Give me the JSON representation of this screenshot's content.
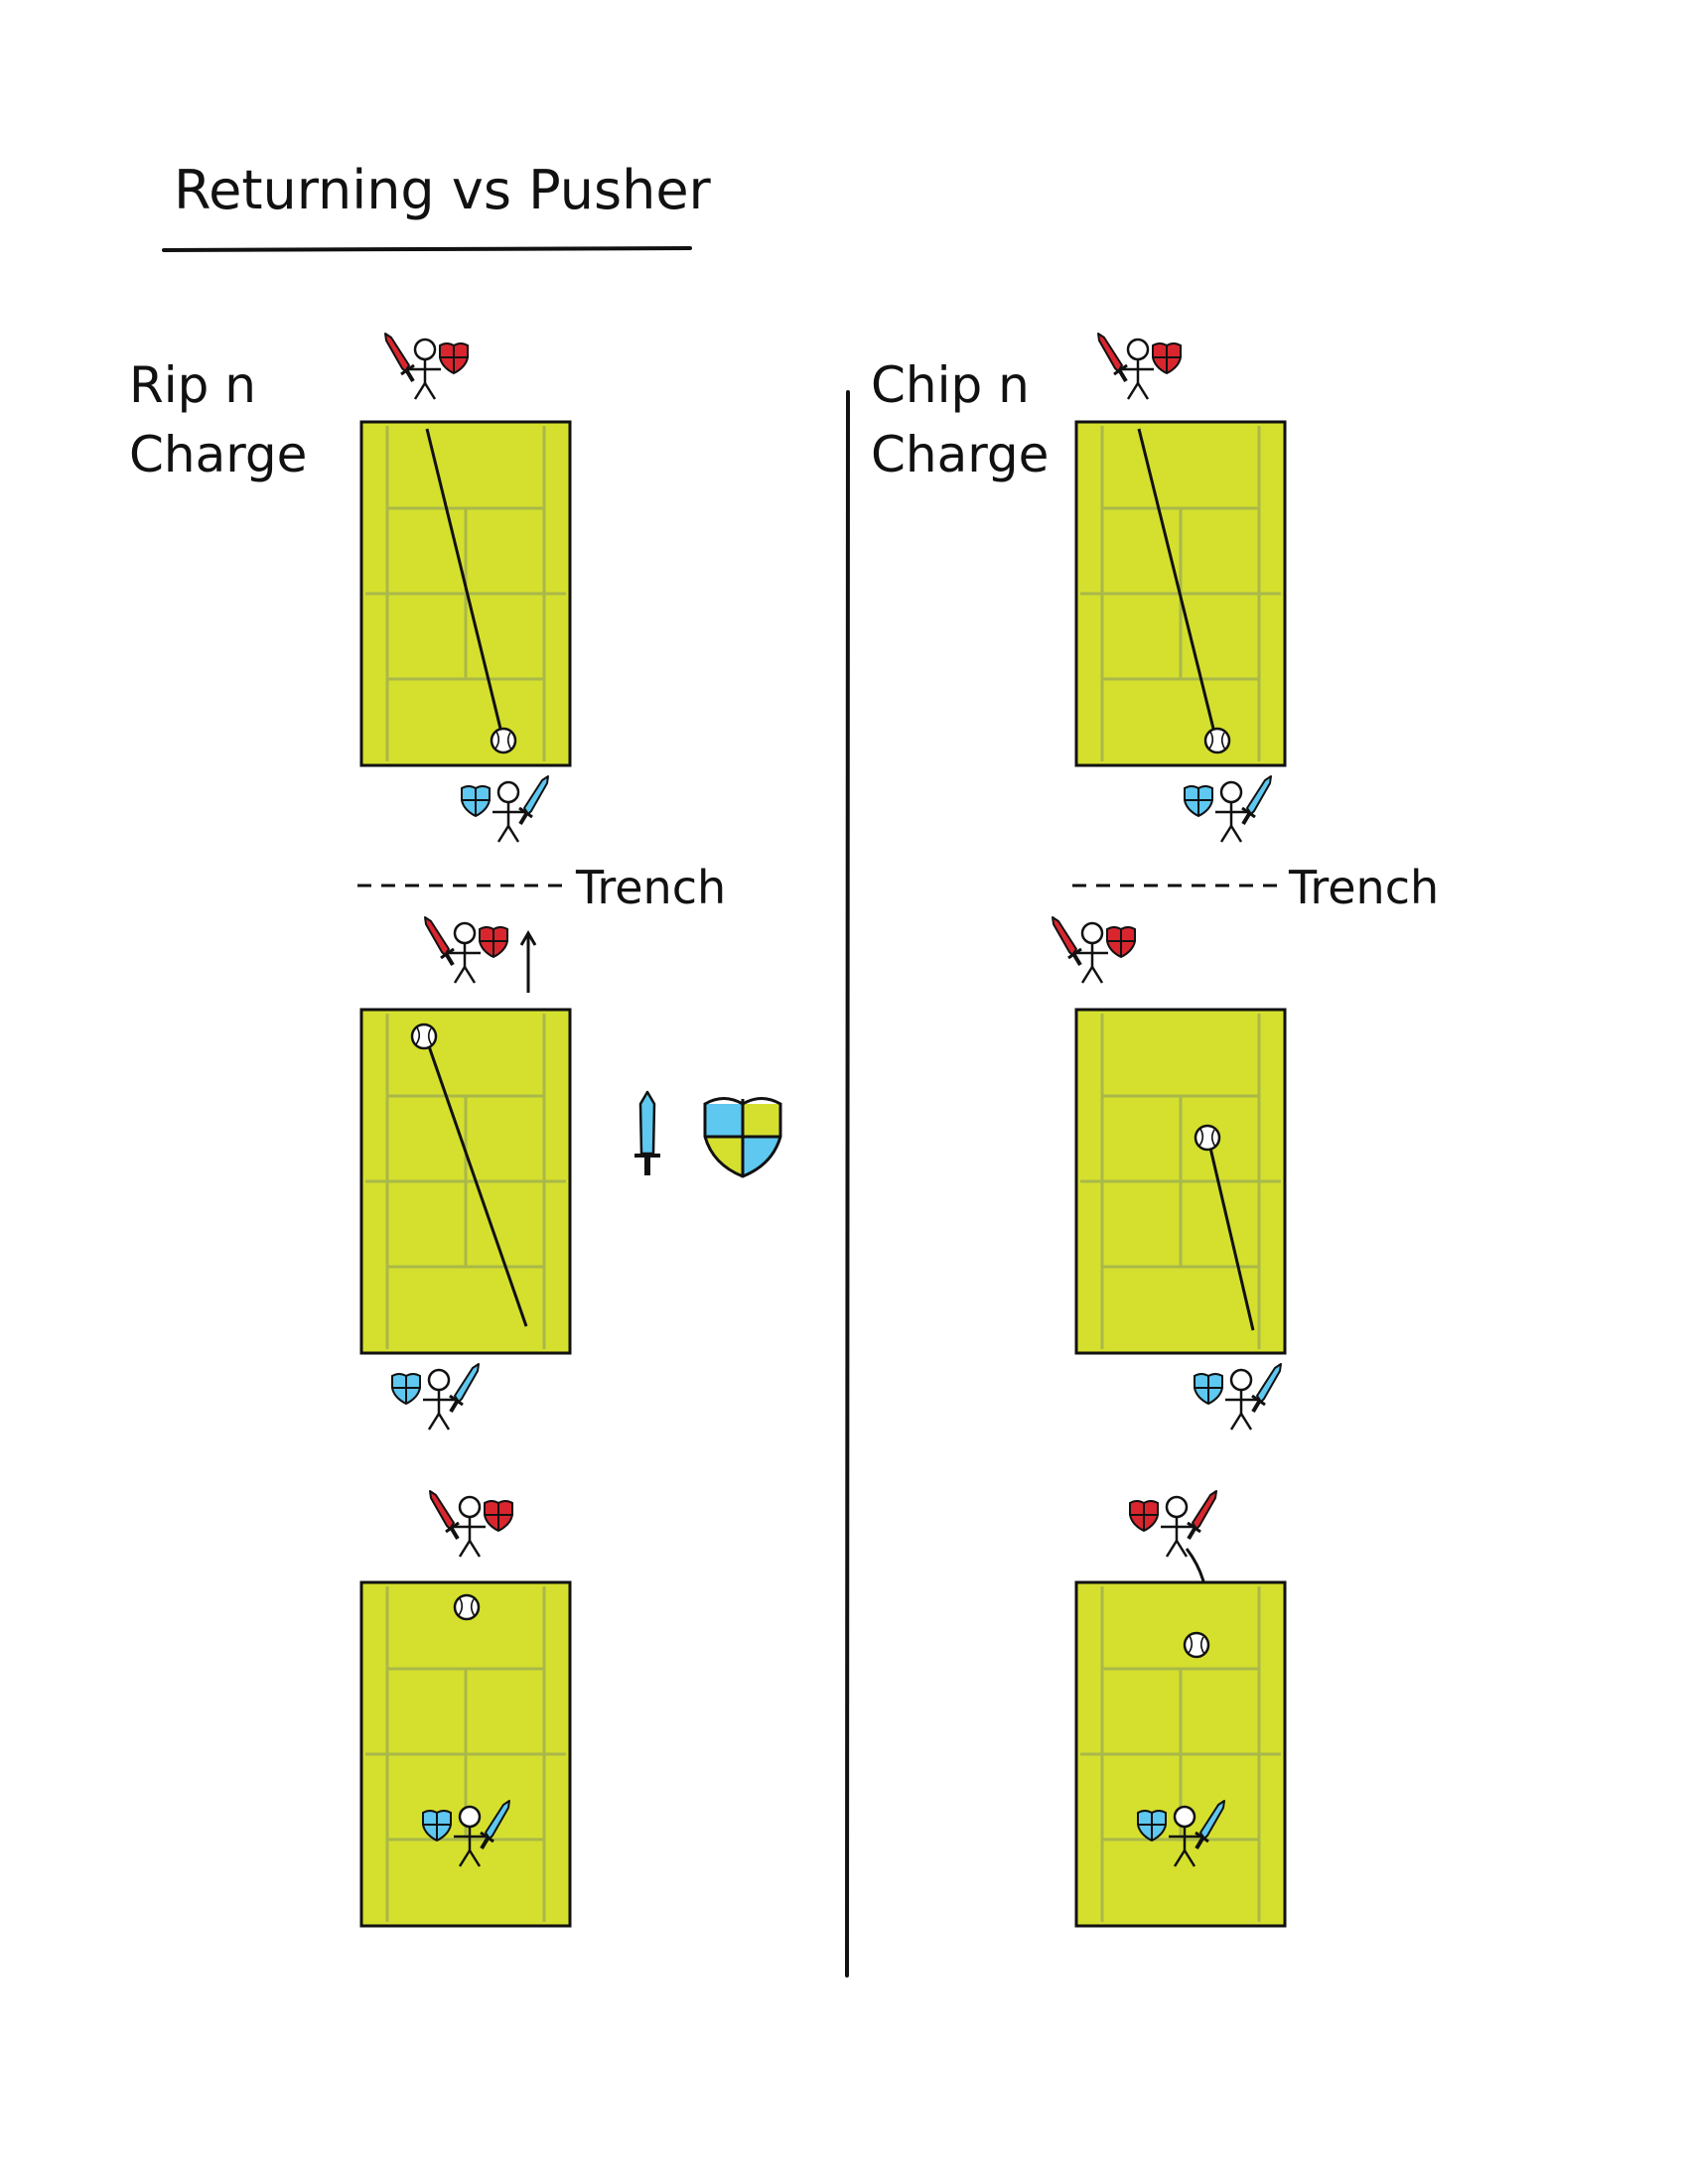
{
  "page": {
    "title": "Returning vs Pusher",
    "trench_label": "Trench"
  },
  "columns": [
    {
      "heading_line1": "Rip n",
      "heading_line2": "Charge"
    },
    {
      "heading_line1": "Chip n",
      "heading_line2": "Charge"
    }
  ],
  "colors": {
    "court": "#d5e02e",
    "court_lines": "#a9b84a",
    "opponent": "#d9262e",
    "player": "#5ec8f0",
    "ink": "#111111"
  },
  "icons": {
    "opponent_weapon": "sword-icon",
    "opponent_defense": "shield-icon",
    "player_weapon": "sword-icon",
    "player_defense": "shield-icon",
    "balance_weapon": "sword-icon",
    "balance_defense": "quartered-shield-icon",
    "ball": "tennis-ball-icon"
  }
}
